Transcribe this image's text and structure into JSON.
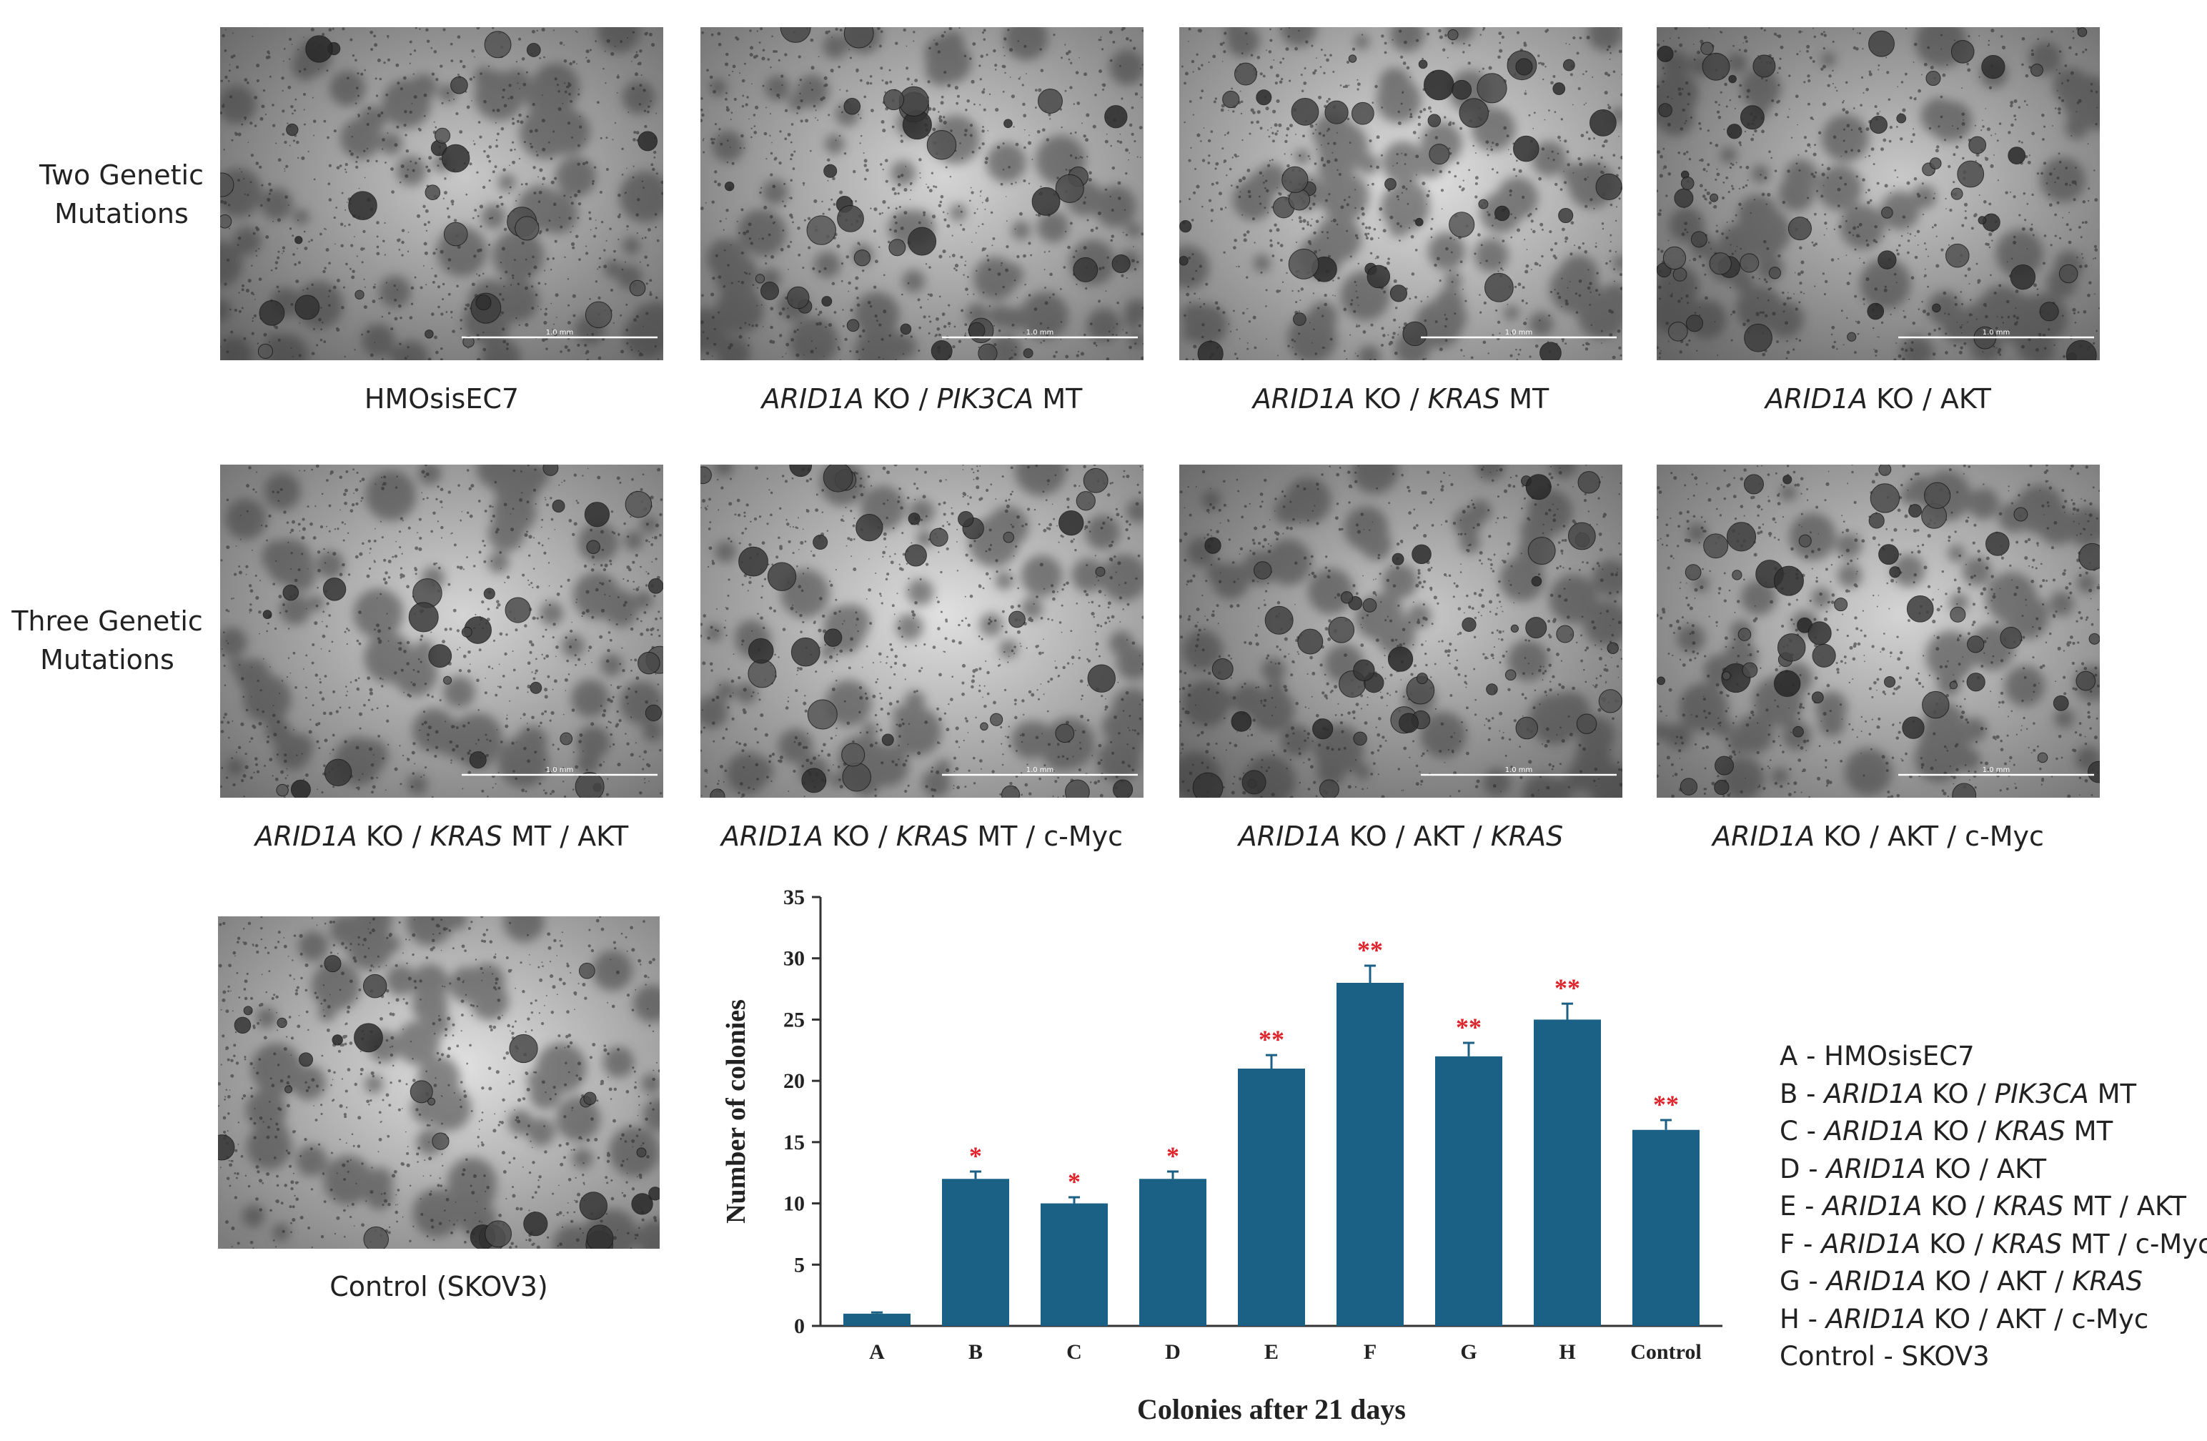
{
  "row_labels": {
    "two": [
      "Two Genetic",
      "Mutations"
    ],
    "three": [
      "Three Genetic",
      "Mutations"
    ]
  },
  "panels": {
    "p1": {
      "caption": [
        {
          "t": "HMOsisEC7",
          "i": false
        }
      ],
      "scale_bar": "1.0 mm"
    },
    "p2": {
      "caption": [
        {
          "t": "ARID1A",
          "i": true
        },
        {
          "t": " KO / ",
          "i": false
        },
        {
          "t": "PIK3CA",
          "i": true
        },
        {
          "t": " MT",
          "i": false
        }
      ],
      "scale_bar": "1.0 mm"
    },
    "p3": {
      "caption": [
        {
          "t": "ARID1A",
          "i": true
        },
        {
          "t": " KO / ",
          "i": false
        },
        {
          "t": "KRAS",
          "i": true
        },
        {
          "t": " MT",
          "i": false
        }
      ],
      "scale_bar": "1.0 mm"
    },
    "p4": {
      "caption": [
        {
          "t": "ARID1A",
          "i": true
        },
        {
          "t": " KO / AKT",
          "i": false
        }
      ],
      "scale_bar": "1.0 mm"
    },
    "p5": {
      "caption": [
        {
          "t": "ARID1A",
          "i": true
        },
        {
          "t": " KO / ",
          "i": false
        },
        {
          "t": "KRAS",
          "i": true
        },
        {
          "t": " MT / AKT",
          "i": false
        }
      ],
      "scale_bar": "1.0 mm"
    },
    "p6": {
      "caption": [
        {
          "t": "ARID1A",
          "i": true
        },
        {
          "t": " KO / ",
          "i": false
        },
        {
          "t": "KRAS",
          "i": true
        },
        {
          "t": " MT / c-Myc",
          "i": false
        }
      ],
      "scale_bar": "1.0 mm"
    },
    "p7": {
      "caption": [
        {
          "t": "ARID1A",
          "i": true
        },
        {
          "t": " KO / AKT / ",
          "i": false
        },
        {
          "t": "KRAS",
          "i": true
        }
      ],
      "scale_bar": "1.0 mm"
    },
    "p8": {
      "caption": [
        {
          "t": "ARID1A",
          "i": true
        },
        {
          "t": " KO / AKT / c-Myc",
          "i": false
        }
      ],
      "scale_bar": "1.0 mm"
    },
    "p9": {
      "caption": [
        {
          "t": "Control (SKOV3)",
          "i": false
        }
      ],
      "scale_bar": ""
    }
  },
  "legend": [
    [
      {
        "t": "A - HMOsisEC7",
        "i": false
      }
    ],
    [
      {
        "t": "B - ",
        "i": false
      },
      {
        "t": "ARID1A",
        "i": true
      },
      {
        "t": " KO / ",
        "i": false
      },
      {
        "t": "PIK3CA",
        "i": true
      },
      {
        "t": " MT",
        "i": false
      }
    ],
    [
      {
        "t": "C - ",
        "i": false
      },
      {
        "t": "ARID1A",
        "i": true
      },
      {
        "t": " KO / ",
        "i": false
      },
      {
        "t": "KRAS",
        "i": true
      },
      {
        "t": " MT",
        "i": false
      }
    ],
    [
      {
        "t": "D - ",
        "i": false
      },
      {
        "t": "ARID1A",
        "i": true
      },
      {
        "t": " KO / AKT",
        "i": false
      }
    ],
    [
      {
        "t": "E - ",
        "i": false
      },
      {
        "t": "ARID1A",
        "i": true
      },
      {
        "t": " KO / ",
        "i": false
      },
      {
        "t": "KRAS",
        "i": true
      },
      {
        "t": " MT / AKT",
        "i": false
      }
    ],
    [
      {
        "t": "F - ",
        "i": false
      },
      {
        "t": "ARID1A",
        "i": true
      },
      {
        "t": " KO / ",
        "i": false
      },
      {
        "t": "KRAS",
        "i": true
      },
      {
        "t": " MT / c-Myc",
        "i": false
      }
    ],
    [
      {
        "t": "G - ",
        "i": false
      },
      {
        "t": "ARID1A",
        "i": true
      },
      {
        "t": " KO / AKT / ",
        "i": false
      },
      {
        "t": "KRAS",
        "i": true
      }
    ],
    [
      {
        "t": "H - ",
        "i": false
      },
      {
        "t": "ARID1A",
        "i": true
      },
      {
        "t": " KO / AKT / c-Myc",
        "i": false
      }
    ],
    [
      {
        "t": "Control - SKOV3",
        "i": false
      }
    ]
  ],
  "chart_data": {
    "type": "bar",
    "categories": [
      "A",
      "B",
      "C",
      "D",
      "E",
      "F",
      "G",
      "H",
      "Control"
    ],
    "values": [
      1,
      12,
      10,
      12,
      21,
      28,
      22,
      25,
      16
    ],
    "errors": [
      0.1,
      0.6,
      0.5,
      0.6,
      1.1,
      1.4,
      1.1,
      1.3,
      0.8
    ],
    "significance": [
      "",
      "*",
      "*",
      "*",
      "**",
      "**",
      "**",
      "**",
      "**"
    ],
    "xlabel": "Colonies after 21 days",
    "ylabel": "Number of colonies",
    "ylim": [
      0,
      35
    ],
    "yticks": [
      0,
      5,
      10,
      15,
      20,
      25,
      30,
      35
    ],
    "grid": false,
    "colors": {
      "bar": "#1a6185",
      "significance": "#e0232a",
      "axis": "#333333"
    }
  }
}
